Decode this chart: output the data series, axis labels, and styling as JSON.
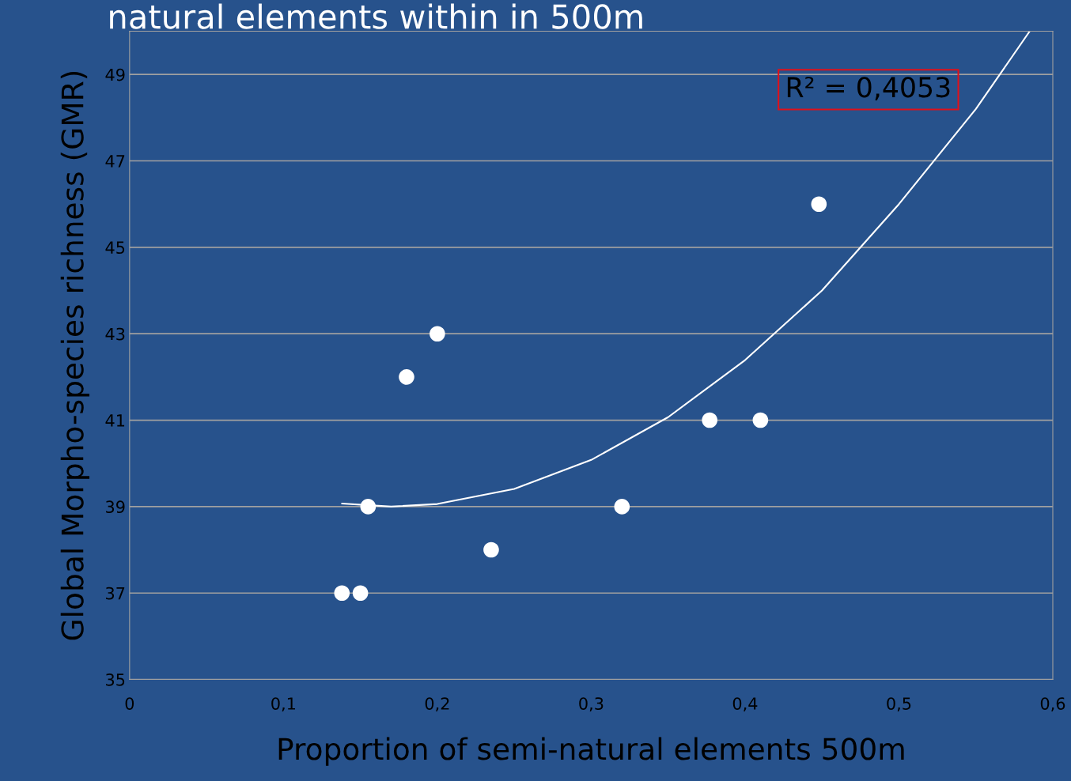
{
  "chart_data": {
    "type": "scatter",
    "title": "natural elements within in 500m",
    "xlabel": "Proportion of semi-natural elements 500m",
    "ylabel": "Global Morpho-species richness (GMR)",
    "series": [
      {
        "color": "#ffffff",
        "x": [
          0.138,
          0.15,
          0.155,
          0.18,
          0.2,
          0.235,
          0.32,
          0.377,
          0.41,
          0.448
        ],
        "values": [
          37,
          37,
          39,
          42,
          43,
          38,
          39,
          41,
          41,
          46
        ]
      },
      {
        "type": "line",
        "color": "#ffffff",
        "marker": "none",
        "x": [
          0.138,
          0.17,
          0.2,
          0.25,
          0.3,
          0.35,
          0.4,
          0.45,
          0.5,
          0.55,
          0.585
        ],
        "values": [
          39.07,
          39.0,
          39.06,
          39.41,
          40.08,
          41.07,
          42.39,
          44.0,
          46.0,
          48.2,
          50.0
        ]
      }
    ],
    "annotations": [
      "R² = 0,4053"
    ],
    "xlim": [
      0,
      0.6
    ],
    "xticks": [
      0,
      {
        "value": 0.1,
        "label": "0,1"
      },
      {
        "value": 0.2,
        "label": "0,2"
      },
      {
        "value": 0.3,
        "label": "0,3"
      },
      {
        "value": 0.4,
        "label": "0,4"
      },
      {
        "value": 0.5,
        "label": "0,5"
      },
      {
        "value": 0.6,
        "label": "0,6"
      }
    ],
    "ylim": [
      35,
      50
    ],
    "yticks": [
      35,
      37,
      39,
      41,
      43,
      45,
      47,
      49
    ],
    "grid": "y",
    "marker": "circle",
    "legend": false
  }
}
